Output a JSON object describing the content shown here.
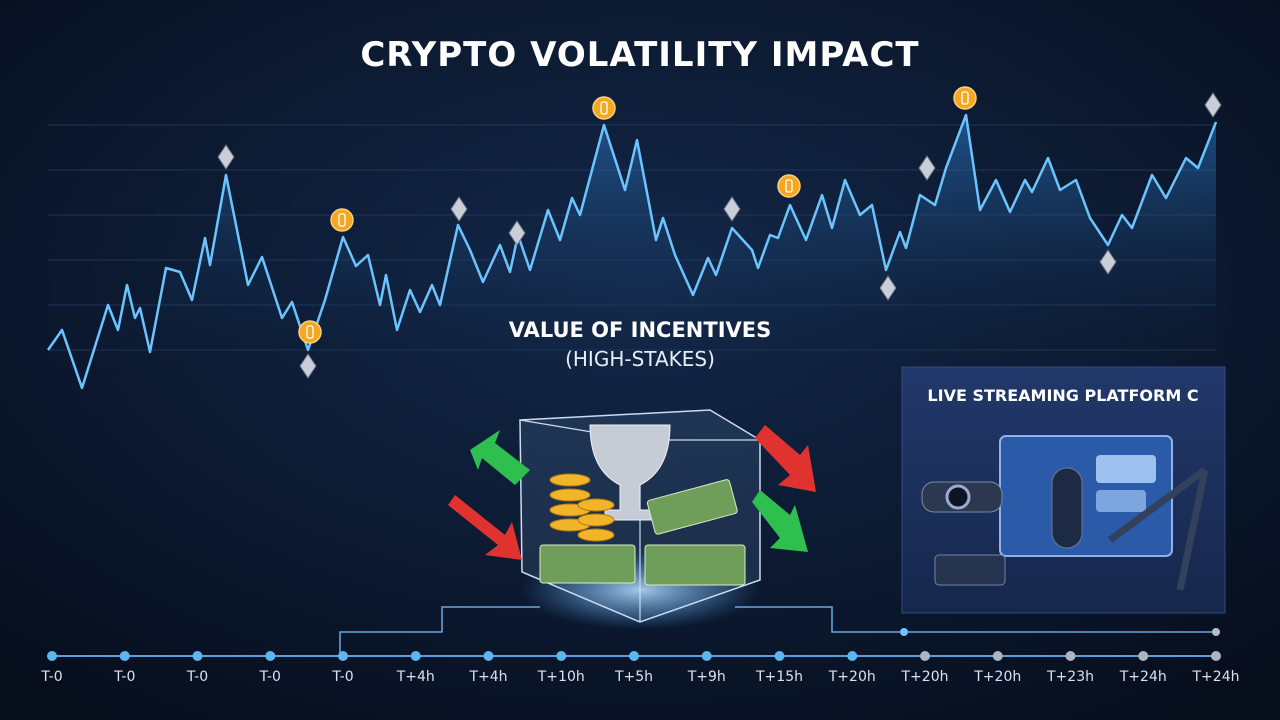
{
  "header": {
    "title": "CRYPTO VOLATILITY IMPACT"
  },
  "incentives": {
    "title": "VALUE OF INCENTIVES",
    "subtitle": "(HIGH-STAKES)"
  },
  "panel": {
    "title": "LIVE STREAMING PLATFORM C"
  },
  "timeline": {
    "labels": [
      "T-0",
      "T-0",
      "T-0",
      "T-0",
      "T-0",
      "T+4h",
      "T+4h",
      "T+10h",
      "T+5h",
      "T+9h",
      "T+15h",
      "T+20h",
      "T+20h",
      "T+20h",
      "T+23h",
      "T+24h",
      "T+24h"
    ]
  }
}
